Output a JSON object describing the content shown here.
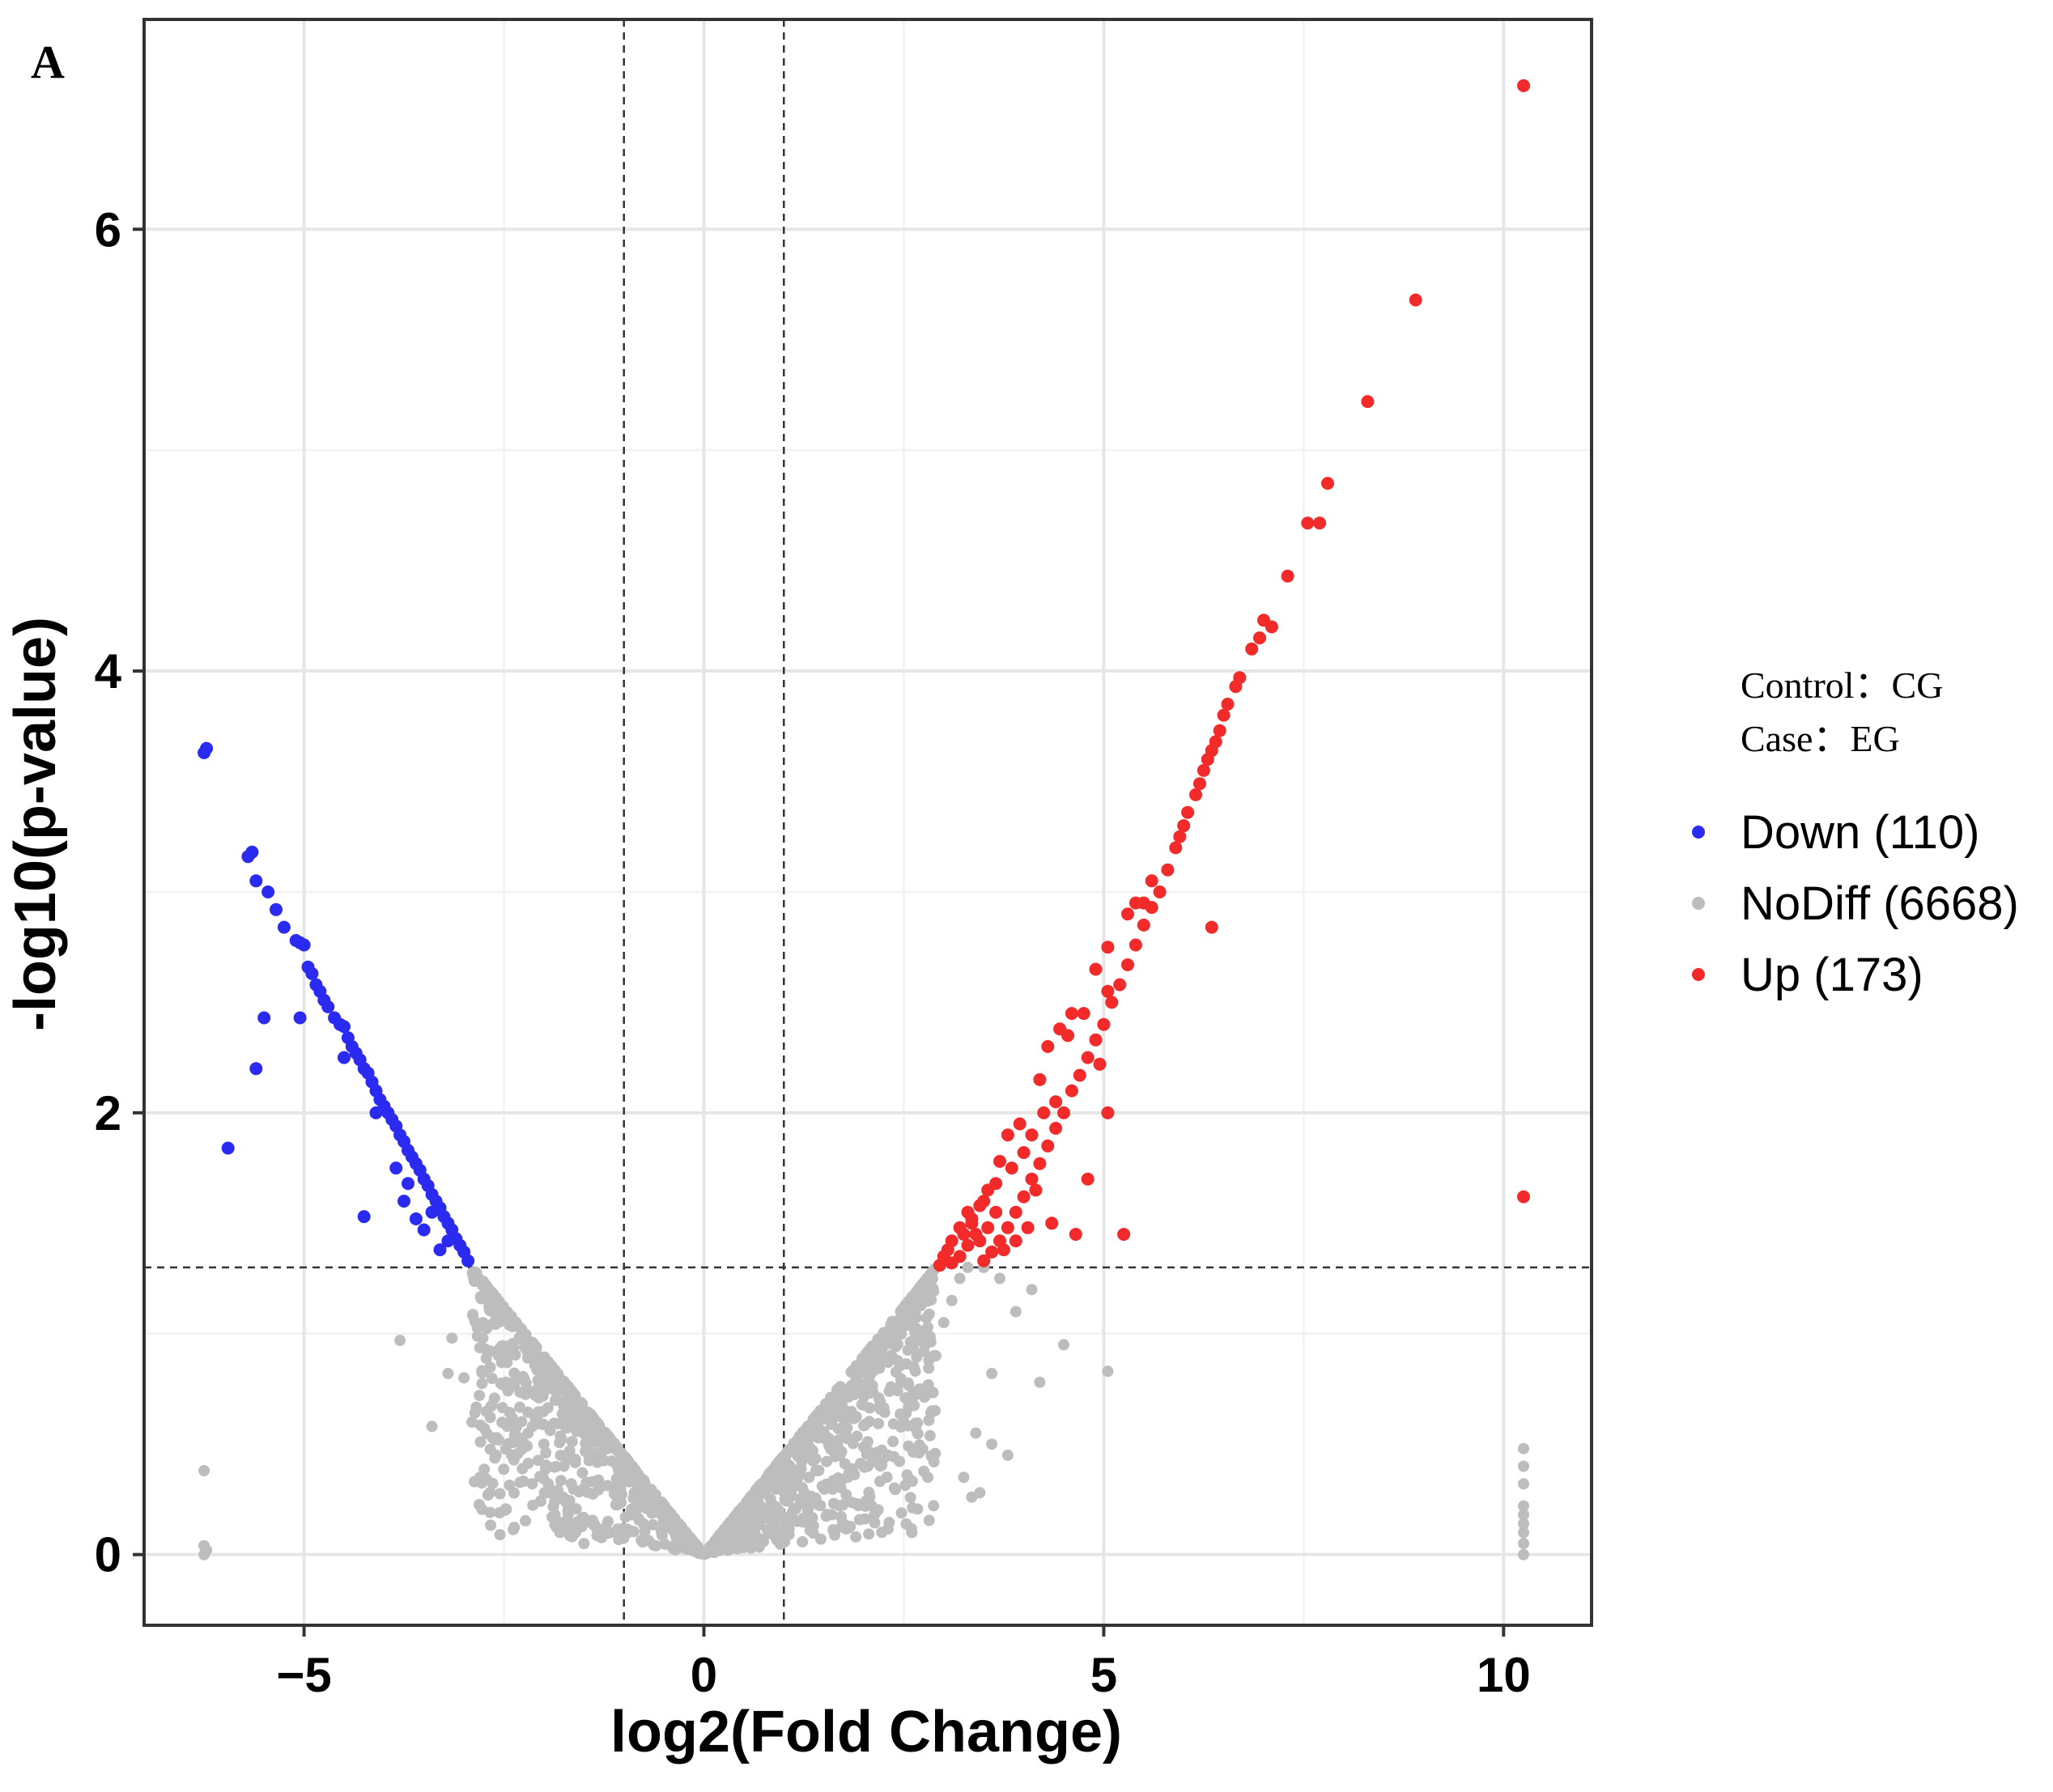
{
  "panel_label": "A",
  "notes": {
    "control": "Control：CG",
    "case": "Case：EG"
  },
  "chart_data": {
    "type": "scatter",
    "xlabel": "log2(Fold Change)",
    "ylabel": "-log10(p-value)",
    "xlim": [
      -7,
      11.1
    ],
    "ylim": [
      -0.32,
      6.95
    ],
    "x_ticks": [
      -5,
      0,
      5,
      10
    ],
    "x_tick_labels": [
      "−5",
      "0",
      "5",
      "10"
    ],
    "y_ticks": [
      0,
      2,
      4,
      6
    ],
    "y_tick_labels": [
      "0",
      "2",
      "4",
      "6"
    ],
    "grid": true,
    "legend_position": "right",
    "thresholds": {
      "log2fc": [
        -1,
        1
      ],
      "neg_log10_p": 1.3
    },
    "series": [
      {
        "name": "Down (110)",
        "color": "#2a2af0",
        "points": [
          [
            -6.25,
            3.63
          ],
          [
            -6.22,
            3.65
          ],
          [
            -5.7,
            3.16
          ],
          [
            -5.65,
            3.18
          ],
          [
            -5.6,
            3.05
          ],
          [
            -5.45,
            3.0
          ],
          [
            -5.35,
            2.92
          ],
          [
            -5.25,
            2.84
          ],
          [
            -5.1,
            2.78
          ],
          [
            -5.05,
            2.77
          ],
          [
            -5.0,
            2.76
          ],
          [
            -4.95,
            2.66
          ],
          [
            -4.9,
            2.63
          ],
          [
            -4.85,
            2.58
          ],
          [
            -4.8,
            2.55
          ],
          [
            -4.75,
            2.51
          ],
          [
            -4.7,
            2.48
          ],
          [
            -4.62,
            2.43
          ],
          [
            -4.55,
            2.4
          ],
          [
            -4.5,
            2.39
          ],
          [
            -4.45,
            2.34
          ],
          [
            -4.4,
            2.3
          ],
          [
            -4.35,
            2.27
          ],
          [
            -4.3,
            2.24
          ],
          [
            -4.25,
            2.2
          ],
          [
            -4.2,
            2.18
          ],
          [
            -4.15,
            2.14
          ],
          [
            -4.1,
            2.1
          ],
          [
            -4.05,
            2.06
          ],
          [
            -4.0,
            2.03
          ],
          [
            -3.95,
            2.0
          ],
          [
            -3.9,
            1.97
          ],
          [
            -3.85,
            1.94
          ],
          [
            -3.8,
            1.9
          ],
          [
            -3.75,
            1.87
          ],
          [
            -3.7,
            1.83
          ],
          [
            -3.65,
            1.8
          ],
          [
            -3.6,
            1.77
          ],
          [
            -3.55,
            1.74
          ],
          [
            -3.5,
            1.7
          ],
          [
            -3.45,
            1.67
          ],
          [
            -3.4,
            1.63
          ],
          [
            -3.35,
            1.6
          ],
          [
            -3.3,
            1.57
          ],
          [
            -3.25,
            1.53
          ],
          [
            -3.2,
            1.5
          ],
          [
            -3.15,
            1.47
          ],
          [
            -3.1,
            1.43
          ],
          [
            -3.05,
            1.4
          ],
          [
            -3.0,
            1.37
          ],
          [
            -2.95,
            1.33
          ],
          [
            -5.5,
            2.43
          ],
          [
            -5.6,
            2.2
          ],
          [
            -5.95,
            1.84
          ],
          [
            -4.25,
            1.53
          ],
          [
            -3.75,
            1.6
          ],
          [
            -3.6,
            1.52
          ],
          [
            -3.5,
            1.47
          ],
          [
            -3.3,
            1.38
          ],
          [
            -5.05,
            2.43
          ],
          [
            -4.5,
            2.25
          ],
          [
            -4.1,
            2.0
          ],
          [
            -3.85,
            1.75
          ],
          [
            -3.7,
            1.68
          ],
          [
            -3.4,
            1.55
          ],
          [
            -3.2,
            1.42
          ]
        ]
      },
      {
        "name": "NoDiff (6668)",
        "color": "#bdbdbd",
        "points": [
          [
            -6.25,
            0.38
          ],
          [
            -6.25,
            0.04
          ],
          [
            -6.25,
            0.0
          ],
          [
            -6.22,
            0.02
          ],
          [
            -3.8,
            0.97
          ],
          [
            -3.2,
            0.82
          ],
          [
            -3.0,
            0.8
          ],
          [
            -2.7,
            0.27
          ],
          [
            -2.55,
            0.09
          ],
          [
            -2.6,
            0.45
          ],
          [
            -2.4,
            0.62
          ],
          [
            -2.2,
            0.55
          ],
          [
            -1.95,
            0.28
          ],
          [
            -1.8,
            0.1
          ],
          [
            -1.7,
            0.2
          ],
          [
            -3.4,
            0.58
          ],
          [
            -2.8,
            0.35
          ],
          [
            -3.15,
            0.98
          ],
          [
            -2.9,
            0.6
          ],
          [
            -1.5,
            0.05
          ],
          [
            -0.95,
            0.1
          ],
          [
            -0.6,
            0.04
          ],
          [
            0.3,
            0.02
          ],
          [
            0.7,
            0.05
          ],
          [
            1.0,
            0.12
          ],
          [
            1.3,
            0.2
          ],
          [
            1.6,
            0.18
          ],
          [
            1.9,
            0.08
          ],
          [
            2.1,
            0.22
          ],
          [
            2.3,
            0.45
          ],
          [
            2.5,
            0.6
          ],
          [
            2.7,
            0.75
          ],
          [
            2.9,
            0.9
          ],
          [
            3.0,
            1.05
          ],
          [
            3.1,
            1.15
          ],
          [
            3.2,
            1.25
          ],
          [
            3.3,
            1.3
          ],
          [
            3.5,
            1.3
          ],
          [
            3.7,
            1.25
          ],
          [
            3.9,
            1.1
          ],
          [
            4.1,
            1.2
          ],
          [
            4.5,
            0.95
          ],
          [
            5.05,
            0.83
          ],
          [
            3.4,
            0.55
          ],
          [
            3.6,
            0.5
          ],
          [
            3.8,
            0.45
          ],
          [
            3.25,
            0.35
          ],
          [
            3.35,
            0.26
          ],
          [
            3.45,
            0.28
          ],
          [
            4.2,
            0.78
          ],
          [
            2.85,
            0.65
          ],
          [
            3.6,
            0.82
          ],
          [
            2.6,
            0.1
          ],
          [
            2.8,
            0.35
          ],
          [
            1.4,
            0.38
          ],
          [
            1.2,
            0.25
          ],
          [
            10.25,
            0.48
          ],
          [
            10.25,
            0.4
          ],
          [
            10.25,
            0.32
          ],
          [
            10.25,
            0.22
          ],
          [
            10.25,
            0.18
          ],
          [
            10.25,
            0.14
          ],
          [
            10.25,
            0.1
          ],
          [
            10.25,
            0.05
          ],
          [
            10.25,
            0.0
          ],
          [
            -1.2,
            0.15
          ],
          [
            -1.5,
            0.3
          ],
          [
            -1.75,
            0.4
          ],
          [
            -2.0,
            0.5
          ],
          [
            1.8,
            0.35
          ],
          [
            2.05,
            0.4
          ]
        ],
        "band": {
          "left_x": [
            -2.9,
            0.0
          ],
          "right_x": [
            0.0,
            2.9
          ],
          "y_at_edge": 1.3,
          "y_at_center": 0.0
        }
      },
      {
        "name": "Up (173)",
        "color": "#f22a2a",
        "points": [
          [
            10.25,
            6.65
          ],
          [
            8.9,
            5.68
          ],
          [
            8.3,
            5.22
          ],
          [
            7.8,
            4.85
          ],
          [
            7.7,
            4.67
          ],
          [
            7.55,
            4.67
          ],
          [
            7.3,
            4.43
          ],
          [
            7.0,
            4.23
          ],
          [
            7.1,
            4.2
          ],
          [
            6.95,
            4.15
          ],
          [
            6.85,
            4.1
          ],
          [
            6.7,
            3.97
          ],
          [
            6.65,
            3.93
          ],
          [
            6.55,
            3.85
          ],
          [
            6.5,
            3.8
          ],
          [
            6.45,
            3.73
          ],
          [
            6.4,
            3.68
          ],
          [
            6.35,
            3.64
          ],
          [
            6.3,
            3.6
          ],
          [
            6.25,
            3.55
          ],
          [
            6.2,
            3.49
          ],
          [
            6.15,
            3.44
          ],
          [
            6.05,
            3.36
          ],
          [
            6.0,
            3.3
          ],
          [
            5.95,
            3.25
          ],
          [
            5.9,
            3.2
          ],
          [
            5.8,
            3.1
          ],
          [
            5.7,
            3.0
          ],
          [
            5.6,
            2.93
          ],
          [
            5.5,
            2.85
          ],
          [
            5.4,
            2.76
          ],
          [
            5.3,
            2.67
          ],
          [
            5.2,
            2.58
          ],
          [
            5.1,
            2.5
          ],
          [
            5.0,
            2.4
          ],
          [
            4.9,
            2.33
          ],
          [
            4.8,
            2.25
          ],
          [
            4.7,
            2.17
          ],
          [
            4.6,
            2.1
          ],
          [
            4.5,
            2.0
          ],
          [
            4.4,
            1.93
          ],
          [
            4.3,
            1.85
          ],
          [
            4.2,
            1.77
          ],
          [
            4.1,
            1.7
          ],
          [
            4.0,
            1.62
          ],
          [
            3.9,
            1.55
          ],
          [
            3.8,
            1.48
          ],
          [
            3.7,
            1.42
          ],
          [
            3.6,
            1.37
          ],
          [
            3.5,
            1.33
          ],
          [
            3.4,
            1.45
          ],
          [
            3.3,
            1.4
          ],
          [
            3.2,
            1.35
          ],
          [
            3.1,
            1.32
          ],
          [
            3.0,
            1.35
          ],
          [
            2.95,
            1.31
          ],
          [
            6.35,
            2.84
          ],
          [
            5.25,
            1.45
          ],
          [
            5.05,
            2.0
          ],
          [
            4.95,
            2.22
          ],
          [
            10.25,
            1.62
          ],
          [
            5.4,
            2.95
          ],
          [
            5.3,
            2.9
          ],
          [
            5.05,
            2.55
          ],
          [
            4.6,
            2.45
          ],
          [
            4.45,
            2.38
          ],
          [
            4.3,
            2.3
          ],
          [
            4.2,
            2.15
          ],
          [
            3.95,
            1.95
          ],
          [
            3.8,
            1.9
          ],
          [
            3.7,
            1.78
          ],
          [
            3.55,
            1.65
          ],
          [
            3.45,
            1.58
          ],
          [
            3.35,
            1.52
          ],
          [
            3.25,
            1.45
          ],
          [
            4.8,
            1.7
          ],
          [
            4.65,
            1.45
          ],
          [
            4.35,
            1.5
          ],
          [
            4.15,
            1.65
          ],
          [
            4.05,
            1.48
          ],
          [
            3.9,
            1.42
          ],
          [
            3.75,
            1.38
          ],
          [
            3.65,
            1.55
          ],
          [
            3.55,
            1.48
          ],
          [
            3.45,
            1.42
          ],
          [
            3.3,
            1.55
          ],
          [
            3.2,
            1.48
          ],
          [
            3.1,
            1.42
          ],
          [
            3.05,
            1.38
          ],
          [
            5.05,
            2.75
          ],
          [
            4.9,
            2.65
          ],
          [
            4.75,
            2.45
          ],
          [
            4.55,
            2.35
          ],
          [
            4.4,
            2.05
          ],
          [
            4.25,
            2.0
          ],
          [
            4.1,
            1.9
          ],
          [
            4.0,
            1.82
          ],
          [
            3.85,
            1.75
          ],
          [
            3.65,
            1.68
          ],
          [
            3.5,
            1.6
          ],
          [
            3.35,
            1.5
          ],
          [
            5.6,
            3.05
          ],
          [
            5.5,
            2.95
          ]
        ]
      }
    ]
  }
}
